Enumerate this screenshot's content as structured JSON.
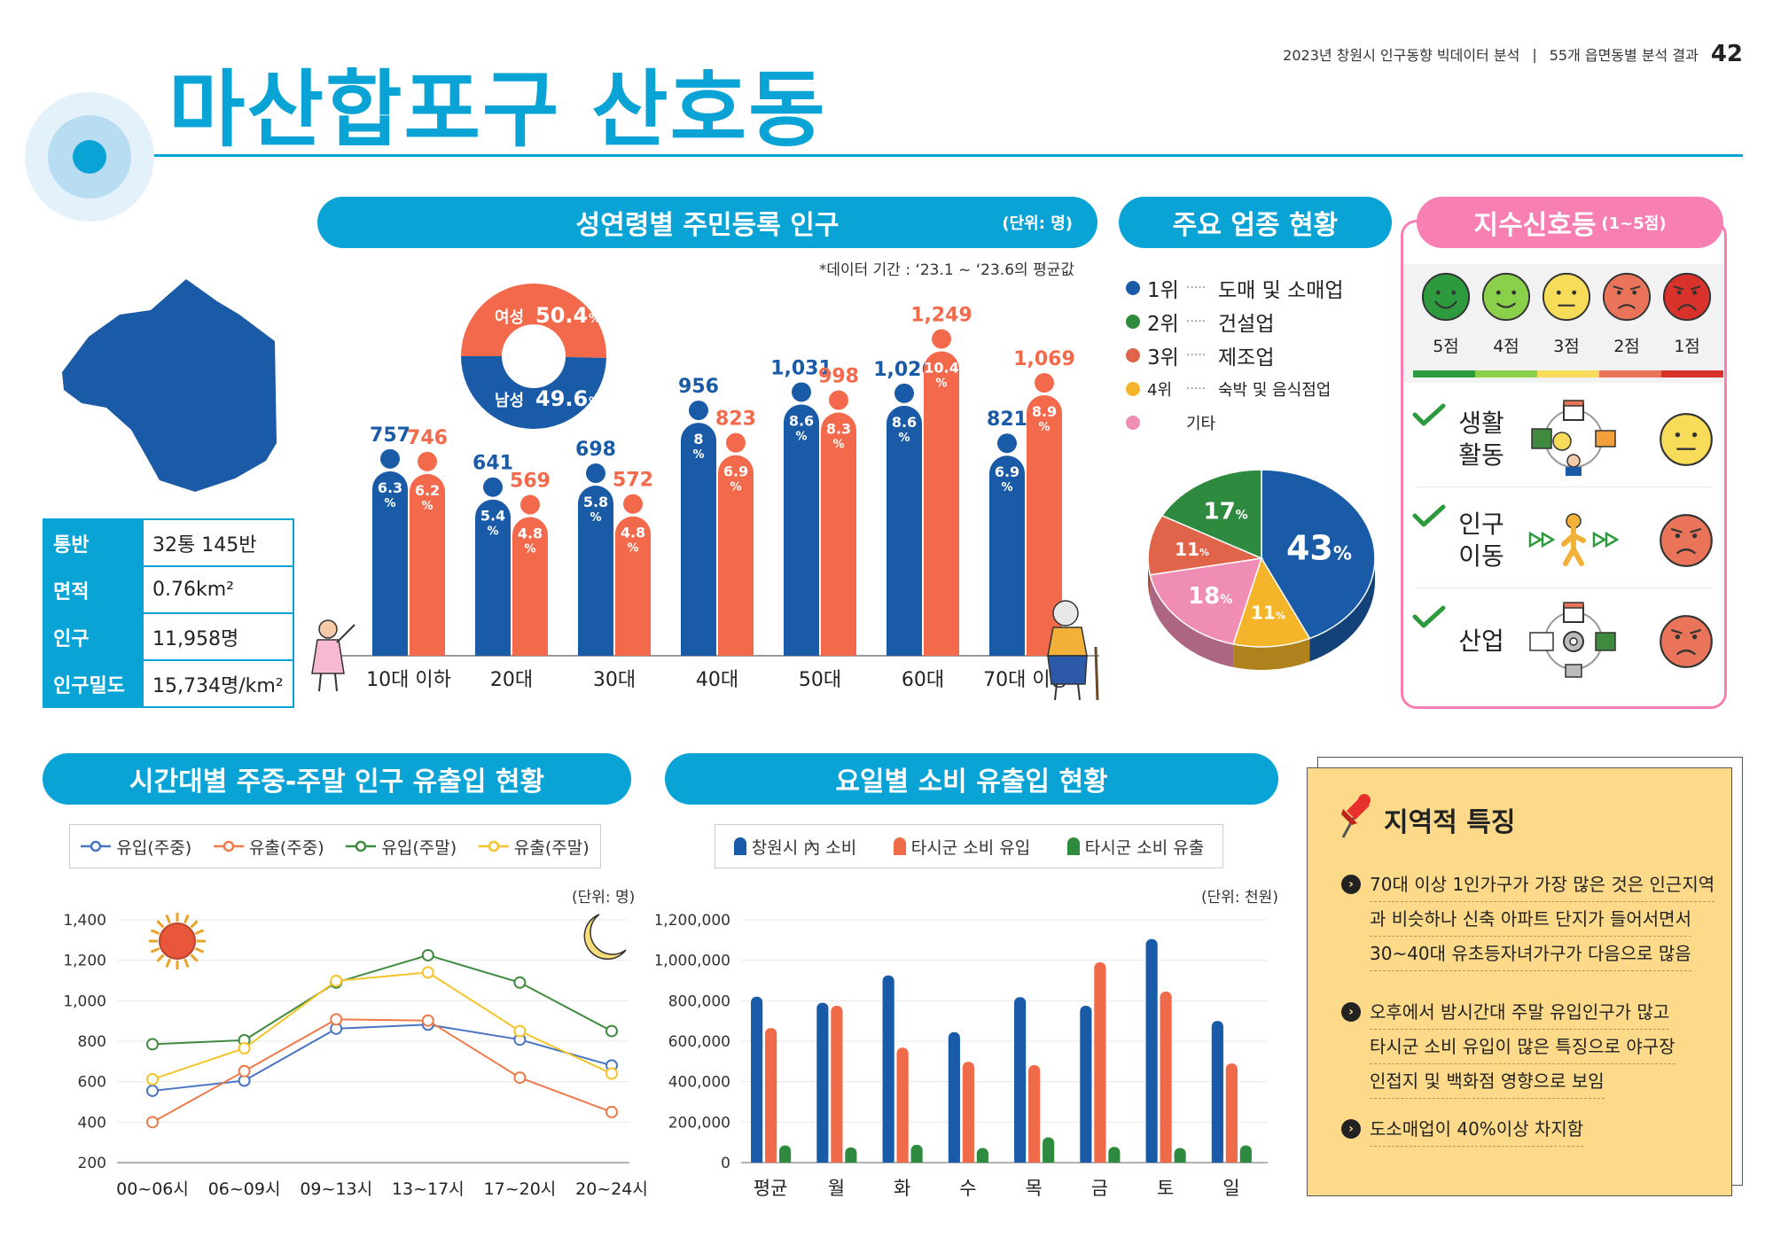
{
  "header": {
    "title": "마산합포구 산호동",
    "report_title": "2023년 창원시 인구동향 빅데이터 분석",
    "report_section": "55개 읍면동별 분석 결과",
    "page_number": "42"
  },
  "area_info": {
    "rows": [
      {
        "key": "통반",
        "value": "32통 145반"
      },
      {
        "key": "면적",
        "value": "0.76km²"
      },
      {
        "key": "인구",
        "value": "11,958명"
      },
      {
        "key": "인구밀도",
        "value": "15,734명/km²"
      }
    ]
  },
  "population_panel": {
    "title": "성연령별 주민등록 인구",
    "unit": "(단위: 명)",
    "period_note": "*데이터 기간 : ‘23.1 ~ ‘23.6의 평균값"
  },
  "industry_panel": {
    "title": "주요 업종 현황",
    "legend": [
      {
        "rank": "1위",
        "name": "도매 및 소매업",
        "color": "#1a5ba8"
      },
      {
        "rank": "2위",
        "name": "건설업",
        "color": "#2e8a3e"
      },
      {
        "rank": "3위",
        "name": "제조업",
        "color": "#e0644a"
      },
      {
        "rank": "4위",
        "name": "숙박 및 음식점업",
        "color": "#f5b52a"
      },
      {
        "rank": "",
        "name": "기타",
        "color": "#f08db4"
      }
    ]
  },
  "index_panel": {
    "title": "지수신호등",
    "title_range": "(1~5점)",
    "scale": [
      {
        "label": "5점",
        "color": "#2e9a3e"
      },
      {
        "label": "4점",
        "color": "#8bd04a"
      },
      {
        "label": "3점",
        "color": "#f7dc5a"
      },
      {
        "label": "2점",
        "color": "#e9745a"
      },
      {
        "label": "1점",
        "color": "#d8322a"
      }
    ],
    "items": [
      {
        "name_line1": "생활",
        "name_line2": "활동",
        "score": 3
      },
      {
        "name_line1": "인구",
        "name_line2": "이동",
        "score": 2
      },
      {
        "name_line1": "산업",
        "name_line2": "",
        "score": 2
      }
    ]
  },
  "time_panel": {
    "title": "시간대별 주중-주말 인구 유출입 현황",
    "unit": "(단위: 명)"
  },
  "weekday_panel": {
    "title": "요일별 소비 유출입 현황",
    "unit": "(단위: 천원)"
  },
  "features": {
    "title": "지역적 특징",
    "items": [
      {
        "lines": [
          "70대 이상 1인가구가 가장 많은 것은 인근지역",
          "과 비슷하나 신축 아파트 단지가 들어서면서",
          "30~40대 유초등자녀가구가 다음으로 많음"
        ]
      },
      {
        "lines": [
          "오후에서 밤시간대 주말 유입인구가 많고",
          "타시군 소비 유입이 많은 특징으로 야구장",
          "인접지 및 백화점 영향으로 보임"
        ]
      },
      {
        "lines": [
          "도소매업이 40%이상 차지함"
        ]
      }
    ]
  },
  "chart_data": [
    {
      "id": "population_by_age",
      "type": "bar",
      "categories": [
        "10대 이하",
        "20대",
        "30대",
        "40대",
        "50대",
        "60대",
        "70대 이상"
      ],
      "series": [
        {
          "name": "남성",
          "color": "#1a5ba8",
          "values": [
            757,
            641,
            698,
            956,
            1031,
            1026,
            821
          ],
          "value_labels": [
            "757",
            "641",
            "698",
            "956",
            "1,031",
            "1,026",
            "821"
          ],
          "pct": [
            "6.3",
            "5.4",
            "5.8",
            "8",
            "8.6",
            "8.6",
            "6.9"
          ]
        },
        {
          "name": "여성",
          "color": "#f26a4b",
          "values": [
            746,
            569,
            572,
            823,
            998,
            1249,
            1069
          ],
          "value_labels": [
            "746",
            "569",
            "572",
            "823",
            "998",
            "1,249",
            "1,069"
          ],
          "pct": [
            "6.2",
            "4.8",
            "4.8",
            "6.9",
            "8.3",
            "10.4",
            "8.9"
          ]
        }
      ]
    },
    {
      "id": "gender_ratio",
      "type": "pie",
      "slices": [
        {
          "label": "여성",
          "value": 50.4,
          "value_label": "50.4",
          "color": "#f26a4b"
        },
        {
          "label": "남성",
          "value": 49.6,
          "value_label": "49.6",
          "color": "#1a5ba8"
        }
      ]
    },
    {
      "id": "industry_share",
      "type": "pie",
      "slices": [
        {
          "label": "도매 및 소매업",
          "value": 43,
          "color": "#1a5ba8"
        },
        {
          "label": "숙박 및 음식점업",
          "value": 11,
          "color": "#f5b52a"
        },
        {
          "label": "기타",
          "value": 18,
          "color": "#f08db4"
        },
        {
          "label": "제조업",
          "value": 11,
          "color": "#e0644a"
        },
        {
          "label": "건설업",
          "value": 17,
          "color": "#2e8a3e"
        }
      ]
    },
    {
      "id": "hourly_flow",
      "type": "line",
      "categories": [
        "00~06시",
        "06~09시",
        "09~13시",
        "13~17시",
        "17~20시",
        "20~24시"
      ],
      "ylim": [
        200,
        1400
      ],
      "yticks": [
        "200",
        "400",
        "600",
        "800",
        "1,000",
        "1,200",
        "1,400"
      ],
      "series": [
        {
          "name": "유입(주중)",
          "color": "#4a73c2",
          "values": [
            555,
            605,
            862,
            882,
            808,
            680
          ]
        },
        {
          "name": "유출(주중)",
          "color": "#ee7a4a",
          "values": [
            400,
            652,
            908,
            902,
            620,
            450
          ]
        },
        {
          "name": "유입(주말)",
          "color": "#3f8a3f",
          "values": [
            785,
            805,
            1090,
            1225,
            1090,
            850
          ]
        },
        {
          "name": "유출(주말)",
          "color": "#f5c32a",
          "values": [
            612,
            765,
            1098,
            1140,
            850,
            640
          ]
        }
      ]
    },
    {
      "id": "weekday_consumption",
      "type": "bar",
      "categories": [
        "평균",
        "월",
        "화",
        "수",
        "목",
        "금",
        "토",
        "일"
      ],
      "ylim": [
        0,
        1200000
      ],
      "yticks": [
        "0",
        "200,000",
        "400,000",
        "600,000",
        "800,000",
        "1,000,000",
        "1,200,000"
      ],
      "series": [
        {
          "name": "창원시 內 소비",
          "color": "#1a5ba8",
          "values": [
            820000,
            790000,
            925000,
            645000,
            818000,
            775000,
            1105000,
            700000
          ]
        },
        {
          "name": "타시군 소비 유입",
          "color": "#ee6a48",
          "values": [
            665000,
            775000,
            568000,
            498000,
            482000,
            990000,
            845000,
            490000
          ]
        },
        {
          "name": "타시군 소비 유출",
          "color": "#2e8a3e",
          "values": [
            85000,
            75000,
            88000,
            72000,
            125000,
            78000,
            72000,
            85000
          ]
        }
      ]
    }
  ]
}
